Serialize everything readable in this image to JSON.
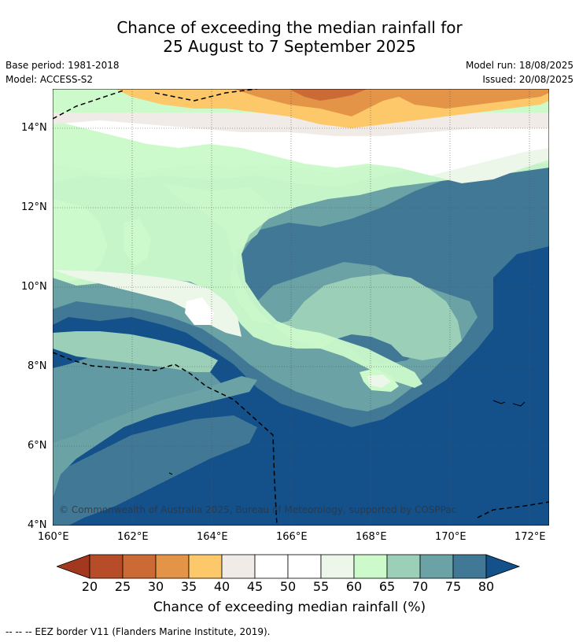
{
  "title_line1": "Chance of exceeding the median rainfall for",
  "title_line2": "25 August to 7 September 2025",
  "base_period": "Base period: 1981-2018",
  "model": "Model: ACCESS-S2",
  "model_run": "Model run: 18/08/2025",
  "issued": "Issued: 20/08/2025",
  "copyright": "© Commonwealth of Australia 2025, Bureau of Meteorology, supported by COSPPac",
  "lat_ticks": [
    "14°N",
    "12°N",
    "10°N",
    "8°N",
    "6°N",
    "4°N"
  ],
  "lon_ticks": [
    "160°E",
    "162°E",
    "164°E",
    "166°E",
    "168°E",
    "170°E",
    "172°E"
  ],
  "colorbar": {
    "labels": [
      "20",
      "25",
      "30",
      "35",
      "40",
      "45",
      "50",
      "55",
      "60",
      "65",
      "70",
      "75",
      "80"
    ],
    "colors": [
      "#a2381e",
      "#b74d28",
      "#cc6a36",
      "#e39446",
      "#fdc869",
      "#f1ebe8",
      "#ffffff",
      "#ffffff",
      "#ecf7ea",
      "#ccfacb",
      "#9ccfb7",
      "#6aa2a5",
      "#417895",
      "#14508a"
    ],
    "title": "Chance of exceeding median rainfall (%)"
  },
  "footer": "--  --  -- EEZ border V11 (Flanders Marine Institute, 2019)."
}
